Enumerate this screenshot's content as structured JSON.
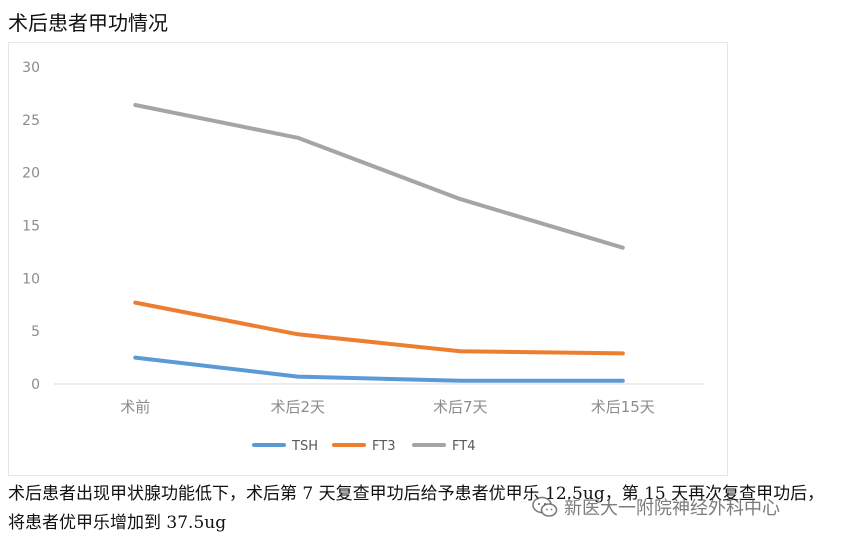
{
  "title": "术后患者甲功情况",
  "caption": "术后患者出现甲状腺功能低下，术后第 7 天复查甲功后给予患者优甲乐 12.5ug，第 15 天再次复查甲功后，将患者优甲乐增加到 37.5ug",
  "watermark": {
    "text": "新医大一附院神经外科中心",
    "icon": "wechat-icon"
  },
  "chart_data": {
    "type": "line",
    "categories": [
      "术前",
      "术后2天",
      "术后7天",
      "术后15天"
    ],
    "series": [
      {
        "name": "TSH",
        "color": "#5b9bd5",
        "values": [
          2.5,
          0.7,
          0.3,
          0.3
        ]
      },
      {
        "name": "FT3",
        "color": "#ed7d31",
        "values": [
          7.7,
          4.7,
          3.1,
          2.9
        ]
      },
      {
        "name": "FT4",
        "color": "#a5a5a5",
        "values": [
          26.4,
          23.3,
          17.5,
          12.9
        ]
      }
    ],
    "ylim": [
      0,
      30
    ],
    "yticks": [
      0,
      5,
      10,
      15,
      20,
      25,
      30
    ],
    "grid": false,
    "legend": "bottom",
    "title": "",
    "xlabel": "",
    "ylabel": ""
  }
}
